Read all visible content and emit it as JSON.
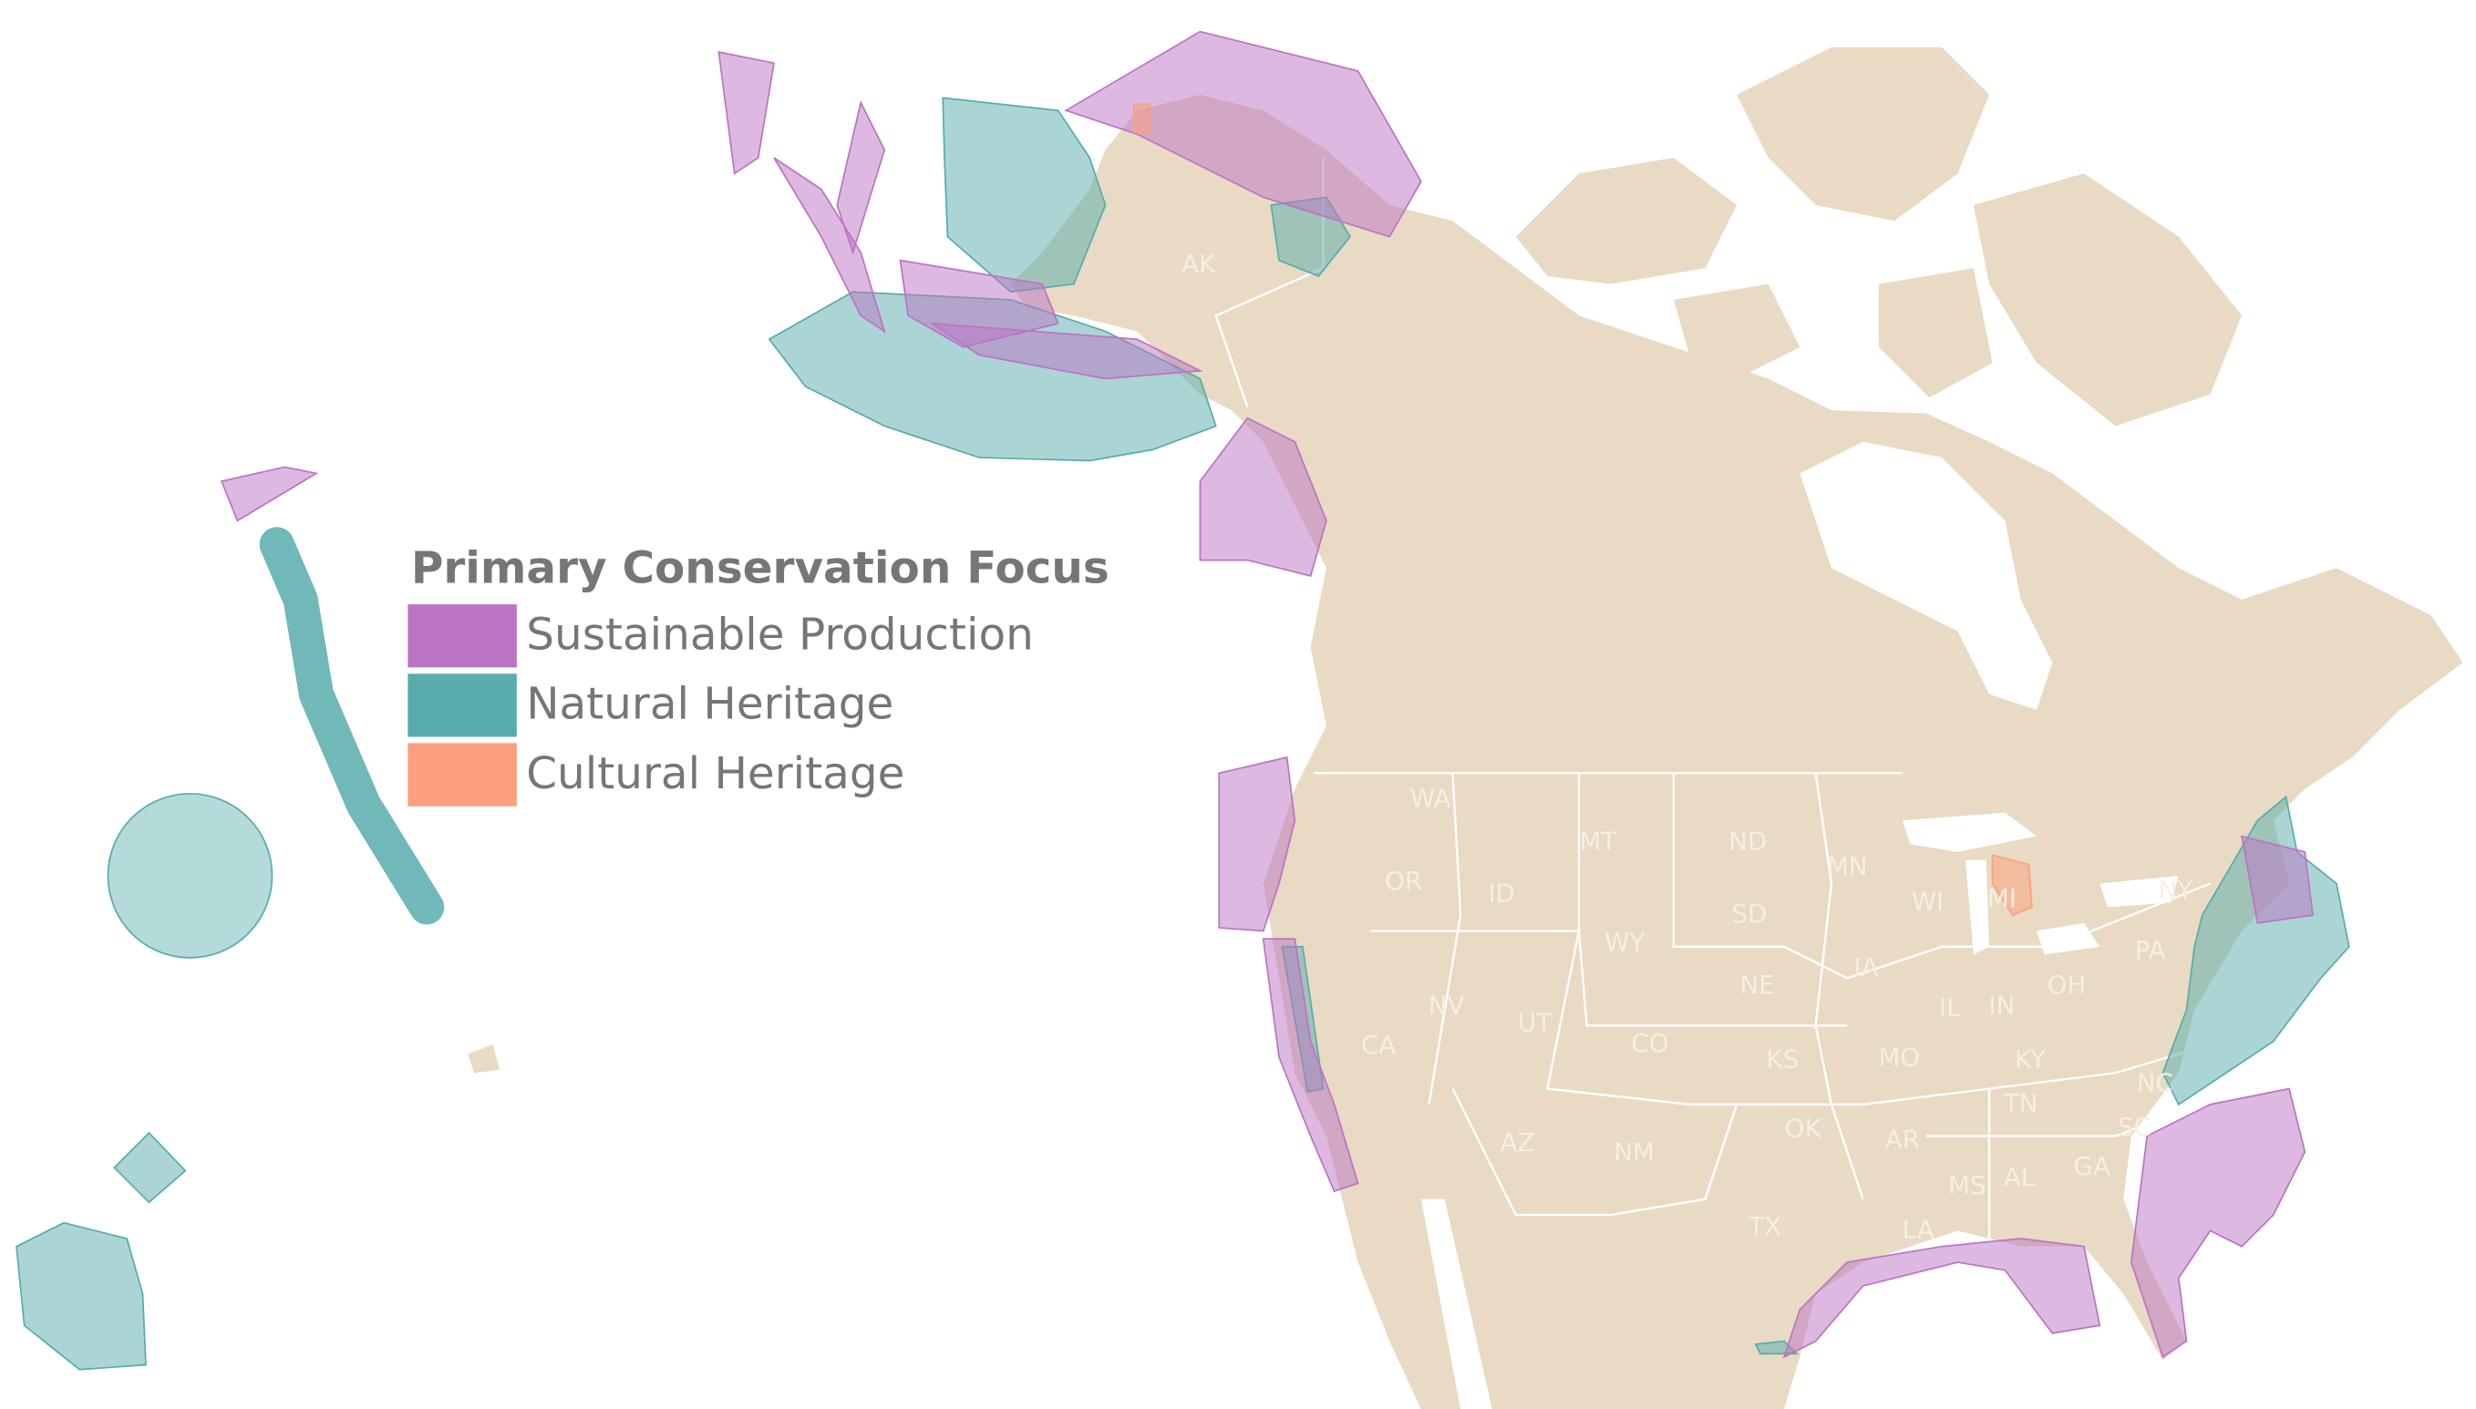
{
  "legend": {
    "title": "Primary Conservation Focus",
    "items": [
      {
        "label": "Sustainable Production",
        "color": "#bb74c4"
      },
      {
        "label": "Natural Heritage",
        "color": "#58acac"
      },
      {
        "label": "Cultural Heritage",
        "color": "#fc9f7c"
      }
    ]
  },
  "land_color": "#e8dac3",
  "state_labels": [
    "AK",
    "WA",
    "OR",
    "ID",
    "MT",
    "ND",
    "MN",
    "SD",
    "WY",
    "WI",
    "MI",
    "NY",
    "PA",
    "IA",
    "NE",
    "NV",
    "UT",
    "CO",
    "IL",
    "IN",
    "OH",
    "CA",
    "KS",
    "MO",
    "KY",
    "TN",
    "NC",
    "OK",
    "AR",
    "AZ",
    "NM",
    "SC",
    "MS",
    "AL",
    "GA",
    "TX",
    "LA"
  ]
}
